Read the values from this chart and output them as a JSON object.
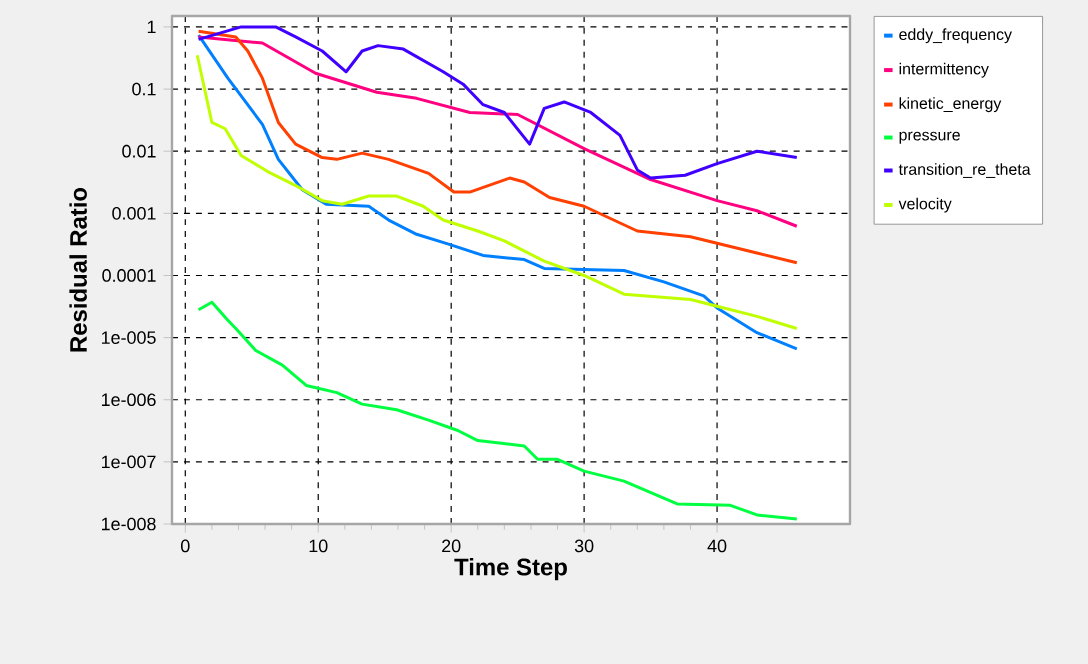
{
  "chart_data": {
    "type": "line",
    "xlabel": "Time Step",
    "ylabel": "Residual Ratio",
    "log": "y",
    "grid": true,
    "legend": "right",
    "marker": "none",
    "line_style": "solid",
    "xlim": [
      -1,
      50
    ],
    "ylim": [
      1e-08,
      1.5
    ],
    "xticks": [
      0,
      10,
      20,
      30,
      40
    ],
    "yticks": [
      {
        "value": 1,
        "label": "1"
      },
      {
        "value": 0.1,
        "label": "0.1"
      },
      {
        "value": 0.01,
        "label": "0.01"
      },
      {
        "value": 0.001,
        "label": "0.001"
      },
      {
        "value": 0.0001,
        "label": "0.0001"
      },
      {
        "value": 1e-05,
        "label": "1e-005"
      },
      {
        "value": 1e-06,
        "label": "1e-006"
      },
      {
        "value": 1e-07,
        "label": "1e-007"
      },
      {
        "value": 1e-08,
        "label": "1e-008"
      }
    ],
    "series": [
      {
        "name": "eddy_frequency",
        "color": "#0080ff",
        "x": [
          1,
          3.2,
          5.8,
          7,
          8.8,
          10.6,
          13.8,
          15.3,
          17.4,
          19.8,
          22.4,
          25.5,
          27,
          33,
          36,
          39,
          40,
          43,
          46
        ],
        "values": [
          0.74,
          0.15,
          0.027,
          0.0074,
          0.0024,
          0.0014,
          0.0013,
          0.00078,
          0.00046,
          0.00032,
          0.00021,
          0.00018,
          0.00013,
          0.00012,
          7.9e-05,
          4.7e-05,
          3e-05,
          1.2e-05,
          6.6e-06
        ]
      },
      {
        "name": "intermittency",
        "color": "#ff0080",
        "x": [
          1,
          5.8,
          9.8,
          14.4,
          17.4,
          21.4,
          25,
          30,
          35,
          40,
          43,
          46
        ],
        "values": [
          0.69,
          0.55,
          0.18,
          0.089,
          0.071,
          0.042,
          0.039,
          0.011,
          0.0035,
          0.0016,
          0.0011,
          0.00062
        ]
      },
      {
        "name": "kinetic_energy",
        "color": "#ff4000",
        "x": [
          1,
          3.8,
          4.7,
          5.8,
          7,
          8.3,
          10.3,
          11.4,
          13.3,
          15.3,
          18.3,
          20.2,
          21.4,
          24.4,
          25.5,
          27.4,
          30,
          34,
          38,
          40,
          43,
          46
        ],
        "values": [
          0.85,
          0.69,
          0.41,
          0.15,
          0.029,
          0.013,
          0.0079,
          0.0074,
          0.0093,
          0.0074,
          0.0044,
          0.0022,
          0.0022,
          0.0037,
          0.0032,
          0.0018,
          0.0013,
          0.00052,
          0.00042,
          0.00033,
          0.00023,
          0.00016
        ]
      },
      {
        "name": "pressure",
        "color": "#00ff40",
        "x": [
          1,
          2,
          3.2,
          3.8,
          5.3,
          7.3,
          9.1,
          11.4,
          13.3,
          15.9,
          18.3,
          20.5,
          22,
          25.5,
          26.5,
          28,
          30,
          33,
          37,
          41,
          43,
          46
        ],
        "values": [
          2.8e-05,
          3.7e-05,
          1.9e-05,
          1.4e-05,
          6.2e-06,
          3.6e-06,
          1.7e-06,
          1.3e-06,
          8.5e-07,
          6.9e-07,
          4.7e-07,
          3.2e-07,
          2.2e-07,
          1.8e-07,
          1.1e-07,
          1.1e-07,
          7.1e-08,
          4.9e-08,
          2.1e-08,
          2e-08,
          1.4e-08,
          1.2e-08
        ]
      },
      {
        "name": "transition_re_theta",
        "color": "#4000ff",
        "x": [
          1,
          4.2,
          6.8,
          8.3,
          10.3,
          12.1,
          13.3,
          14.5,
          16.4,
          19.4,
          20.9,
          22.4,
          24,
          25.9,
          27,
          28.5,
          30.5,
          32.7,
          34,
          35,
          37.6,
          40,
          43,
          46
        ],
        "values": [
          0.63,
          1,
          1,
          0.69,
          0.41,
          0.19,
          0.41,
          0.5,
          0.44,
          0.19,
          0.12,
          0.056,
          0.042,
          0.013,
          0.049,
          0.062,
          0.042,
          0.018,
          0.005,
          0.0037,
          0.0041,
          0.0063,
          0.01,
          0.0079
        ]
      },
      {
        "name": "velocity",
        "color": "#c0ff00",
        "x": [
          0.9,
          2,
          3,
          4.2,
          6.2,
          8.3,
          10.3,
          11.8,
          13.8,
          15.9,
          17.9,
          19.4,
          22,
          24,
          27,
          30,
          33,
          38,
          40,
          43,
          46
        ],
        "values": [
          0.35,
          0.029,
          0.023,
          0.0085,
          0.0047,
          0.0028,
          0.0016,
          0.0014,
          0.0019,
          0.0019,
          0.0013,
          0.00078,
          0.00052,
          0.00036,
          0.00017,
          0.0001,
          5e-05,
          4.1e-05,
          3.2e-05,
          2.2e-05,
          1.4e-05
        ]
      }
    ]
  }
}
